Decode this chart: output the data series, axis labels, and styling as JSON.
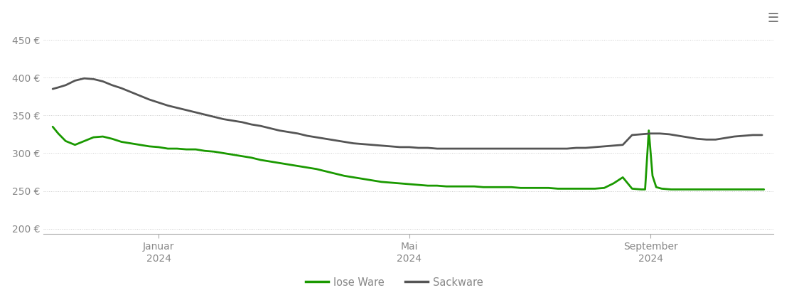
{
  "lose_ware_x": [
    0,
    3,
    7,
    12,
    17,
    22,
    27,
    32,
    37,
    42,
    47,
    52,
    57,
    62,
    67,
    72,
    77,
    82,
    87,
    92,
    97,
    102,
    107,
    112,
    117,
    122,
    127,
    132,
    137,
    142,
    147,
    152,
    157,
    162,
    167,
    172,
    177,
    182,
    187,
    192,
    197,
    202,
    207,
    212,
    217,
    222,
    227,
    232,
    237,
    242,
    247,
    252,
    257,
    262,
    267,
    272,
    277,
    282,
    287,
    292,
    297,
    302,
    307,
    312,
    317,
    319,
    321,
    323,
    325,
    328,
    333,
    338,
    343,
    348,
    353,
    358,
    363,
    368,
    373,
    378,
    383
  ],
  "lose_ware_y": [
    335,
    326,
    316,
    311,
    316,
    321,
    322,
    319,
    315,
    313,
    311,
    309,
    308,
    306,
    306,
    305,
    305,
    303,
    302,
    300,
    298,
    296,
    294,
    291,
    289,
    287,
    285,
    283,
    281,
    279,
    276,
    273,
    270,
    268,
    266,
    264,
    262,
    261,
    260,
    259,
    258,
    257,
    257,
    256,
    256,
    256,
    256,
    255,
    255,
    255,
    255,
    254,
    254,
    254,
    254,
    253,
    253,
    253,
    253,
    253,
    254,
    260,
    268,
    253,
    252,
    252,
    330,
    270,
    255,
    253,
    252,
    252,
    252,
    252,
    252,
    252,
    252,
    252,
    252,
    252,
    252
  ],
  "sackware_x": [
    0,
    3,
    7,
    12,
    17,
    22,
    27,
    32,
    37,
    42,
    47,
    52,
    57,
    62,
    67,
    72,
    77,
    82,
    87,
    92,
    97,
    102,
    107,
    112,
    117,
    122,
    127,
    132,
    137,
    142,
    147,
    152,
    157,
    162,
    167,
    172,
    177,
    182,
    187,
    192,
    197,
    202,
    207,
    212,
    217,
    222,
    227,
    232,
    237,
    242,
    247,
    252,
    257,
    262,
    267,
    272,
    277,
    282,
    287,
    292,
    297,
    302,
    307,
    312,
    317,
    322,
    327,
    332,
    337,
    342,
    347,
    352,
    357,
    362,
    367,
    372,
    377,
    382
  ],
  "sackware_y": [
    385,
    387,
    390,
    396,
    399,
    398,
    395,
    390,
    386,
    381,
    376,
    371,
    367,
    363,
    360,
    357,
    354,
    351,
    348,
    345,
    343,
    341,
    338,
    336,
    333,
    330,
    328,
    326,
    323,
    321,
    319,
    317,
    315,
    313,
    312,
    311,
    310,
    309,
    308,
    308,
    307,
    307,
    306,
    306,
    306,
    306,
    306,
    306,
    306,
    306,
    306,
    306,
    306,
    306,
    306,
    306,
    306,
    307,
    307,
    308,
    309,
    310,
    311,
    324,
    325,
    326,
    326,
    325,
    323,
    321,
    319,
    318,
    318,
    320,
    322,
    323,
    324,
    324
  ],
  "x_ticks_pos": [
    57,
    192,
    322
  ],
  "x_ticks_labels": [
    "Januar\n2024",
    "Mai\n2024",
    "September\n2024"
  ],
  "y_ticks": [
    200,
    250,
    300,
    350,
    400,
    450
  ],
  "y_labels": [
    "200 €",
    "250 €",
    "300 €",
    "350 €",
    "400 €",
    "450 €"
  ],
  "ylim": [
    193,
    463
  ],
  "xlim": [
    -5,
    388
  ],
  "lose_ware_color": "#1a9900",
  "sackware_color": "#555555",
  "grid_color": "#cccccc",
  "background_color": "#ffffff",
  "legend_lose_ware": "lose Ware",
  "legend_sackware": "Sackware",
  "line_width": 2.0,
  "menu_icon_color": "#777777",
  "tick_color": "#aaaaaa",
  "label_color": "#888888"
}
